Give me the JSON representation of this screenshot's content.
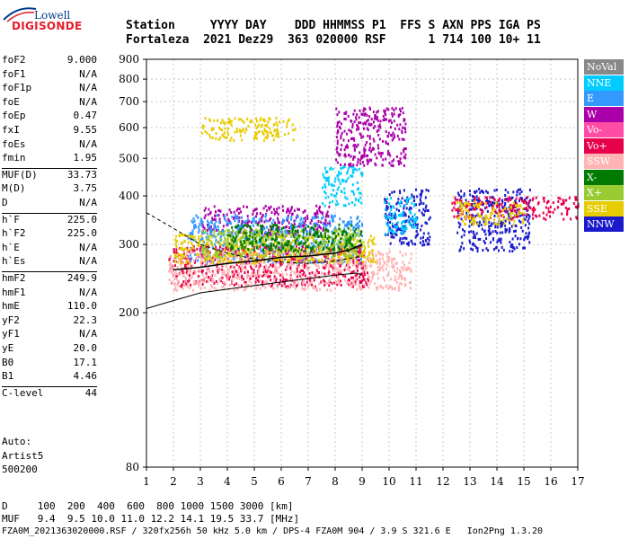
{
  "logo": {
    "line1": "Lowell",
    "line2": "DIGISONDE"
  },
  "header": {
    "labels": "Station     YYYY DAY    DDD HHMMSS P1  FFS S AXN PPS IGA PS",
    "values": "Fortaleza  2021 Dez29  363 020000 RSF      1 714 100 10+ 11"
  },
  "params": [
    {
      "name": "foF2",
      "value": "9.000"
    },
    {
      "name": "foF1",
      "value": "N/A"
    },
    {
      "name": "foF1p",
      "value": "N/A"
    },
    {
      "name": "foE",
      "value": "N/A"
    },
    {
      "name": "foEp",
      "value": "0.47"
    },
    {
      "name": "fxI",
      "value": "9.55"
    },
    {
      "name": "foEs",
      "value": "N/A"
    },
    {
      "name": "fmin",
      "value": "1.95"
    },
    {
      "name": "MUF(D)",
      "value": "33.73"
    },
    {
      "name": "M(D)",
      "value": "3.75"
    },
    {
      "name": "D",
      "value": "N/A"
    },
    {
      "name": "h`F",
      "value": "225.0"
    },
    {
      "name": "h`F2",
      "value": "225.0"
    },
    {
      "name": "h`E",
      "value": "N/A"
    },
    {
      "name": "h`Es",
      "value": "N/A"
    },
    {
      "name": "hmF2",
      "value": "249.9"
    },
    {
      "name": "hmF1",
      "value": "N/A"
    },
    {
      "name": "hmE",
      "value": "110.0"
    },
    {
      "name": "yF2",
      "value": "22.3"
    },
    {
      "name": "yF1",
      "value": "N/A"
    },
    {
      "name": "yE",
      "value": "20.0"
    },
    {
      "name": "B0",
      "value": "17.1"
    },
    {
      "name": "B1",
      "value": "4.46"
    },
    {
      "name": "C-level",
      "value": "44"
    }
  ],
  "auto": {
    "line1": "Auto:",
    "line2": "Artist5",
    "line3": "500200"
  },
  "legend": [
    {
      "label": "NoVal",
      "bg": "#888888",
      "fg": "#ffffff"
    },
    {
      "label": "NNE",
      "bg": "#00ccff",
      "fg": "#ffffff"
    },
    {
      "label": "E",
      "bg": "#3399ff",
      "fg": "#ffffff"
    },
    {
      "label": "W",
      "bg": "#aa00aa",
      "fg": "#ffffff"
    },
    {
      "label": "Vo-",
      "bg": "#ff4da6",
      "fg": "#ffffff"
    },
    {
      "label": "Vo+",
      "bg": "#e6004c",
      "fg": "#ffffff"
    },
    {
      "label": "SSW",
      "bg": "#ffb3b3",
      "fg": "#ffffff"
    },
    {
      "label": "X-",
      "bg": "#007a00",
      "fg": "#ffffff"
    },
    {
      "label": "X+",
      "bg": "#99cc33",
      "fg": "#ffffff"
    },
    {
      "label": "SSE",
      "bg": "#e6cc00",
      "fg": "#ffffff"
    },
    {
      "label": "NNW",
      "bg": "#1a1acc",
      "fg": "#ffffff"
    }
  ],
  "footer": {
    "line1": "D     100  200  400  600  800 1000 1500 3000 [km]",
    "line2": "MUF   9.4  9.5 10.0 11.0 12.2 14.1 19.5 33.7 [MHz]",
    "line3": "FZA0M_2021363020000.RSF / 320fx256h 50 kHz 5.0 km / DPS-4 FZA0M 904 / 3.9 S 321.6 E   Ion2Png 1.3.20"
  },
  "chart_data": {
    "type": "scatter",
    "xlim": [
      1,
      17
    ],
    "ylim": [
      80,
      900
    ],
    "x_ticks": [
      "1",
      "2",
      "3",
      "4",
      "5",
      "6",
      "7",
      "8",
      "9",
      "10",
      "11",
      "12",
      "13",
      "14",
      "15",
      "16",
      "17"
    ],
    "y_ticks": [
      "80",
      "200",
      "300",
      "400",
      "500",
      "600",
      "700",
      "800",
      "900"
    ],
    "y_scale": "log",
    "grid": true,
    "clusters": [
      {
        "color": "#e6cc00",
        "x": [
          3.0,
          6.5
        ],
        "y": [
          560,
          640
        ]
      },
      {
        "color": "#aa00aa",
        "x": [
          3.0,
          7.8
        ],
        "y": [
          320,
          380
        ]
      },
      {
        "color": "#3399ff",
        "x": [
          2.5,
          9.0
        ],
        "y": [
          270,
          360
        ]
      },
      {
        "color": "#00ccff",
        "x": [
          7.5,
          9.0
        ],
        "y": [
          380,
          480
        ]
      },
      {
        "color": "#e6004c",
        "x": [
          1.8,
          9.2
        ],
        "y": [
          235,
          300
        ]
      },
      {
        "color": "#ffb3b3",
        "x": [
          1.8,
          10.8
        ],
        "y": [
          230,
          290
        ]
      },
      {
        "color": "#e6cc00",
        "x": [
          2.0,
          9.5
        ],
        "y": [
          270,
          320
        ]
      },
      {
        "color": "#99cc33",
        "x": [
          3.0,
          9.0
        ],
        "y": [
          280,
          330
        ]
      },
      {
        "color": "#007a00",
        "x": [
          4.0,
          9.0
        ],
        "y": [
          290,
          340
        ]
      },
      {
        "color": "#1a1acc",
        "x": [
          9.8,
          11.5
        ],
        "y": [
          300,
          420
        ]
      },
      {
        "color": "#00ccff",
        "x": [
          9.8,
          11.0
        ],
        "y": [
          320,
          400
        ]
      },
      {
        "color": "#1a1acc",
        "x": [
          12.5,
          15.2
        ],
        "y": [
          290,
          420
        ]
      },
      {
        "color": "#e6004c",
        "x": [
          12.3,
          17.0
        ],
        "y": [
          350,
          400
        ]
      },
      {
        "color": "#e6cc00",
        "x": [
          12.5,
          15.0
        ],
        "y": [
          340,
          390
        ]
      },
      {
        "color": "#aa00aa",
        "x": [
          8.0,
          10.6
        ],
        "y": [
          480,
          680
        ]
      }
    ],
    "profile_lower": {
      "x": [
        1.0,
        1.5,
        2.0,
        3.0,
        4.0,
        5.0,
        6.0,
        7.0,
        8.0,
        8.8,
        9.0
      ],
      "y": [
        205,
        210,
        215,
        225,
        230,
        235,
        240,
        245,
        250,
        253,
        250
      ]
    },
    "profile_dashed": {
      "x": [
        1.0,
        2.0,
        3.0,
        4.0,
        5.0,
        6.0,
        7.0,
        8.0,
        9.0
      ],
      "y": [
        362,
        330,
        300,
        285,
        275,
        270,
        268,
        272,
        280
      ]
    },
    "trace_black": {
      "x": [
        2.0,
        3.0,
        4.0,
        5.0,
        6.0,
        7.0,
        8.0,
        8.5,
        9.0
      ],
      "y": [
        258,
        262,
        268,
        272,
        278,
        280,
        285,
        290,
        300
      ]
    }
  }
}
